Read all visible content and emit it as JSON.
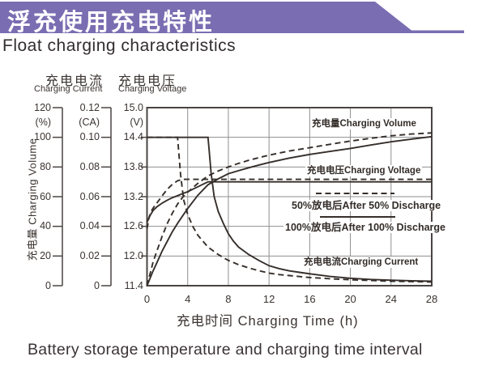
{
  "banner": {
    "title_zh": "浮充使用充电特性"
  },
  "subtitle": "Float charging characteristics",
  "caption": "Battery storage temperature and charging time interval",
  "colors": {
    "banner_purple": "#7a6db1",
    "curve": "#352e2a",
    "grid": "#8f8f8f",
    "border": "#4a4442",
    "text": "#3a3330"
  },
  "axes": {
    "current_header_zh": "充电电流",
    "current_header_en": "Charging Current",
    "voltage_header_zh": "充电电压",
    "voltage_header_en": "Charging Voltage",
    "volume_axis_label": "充电量 Charging Volume",
    "volume_unit": "(%)",
    "current_unit": "(CA)",
    "voltage_unit": "(V)",
    "volume_ticks": [
      "120",
      "100",
      "80",
      "60",
      "40",
      "20",
      "0"
    ],
    "current_ticks": [
      "0.12",
      "0.10",
      "0.08",
      "0.06",
      "0.04",
      "0.02",
      "0"
    ],
    "voltage_ticks": [
      "15.0",
      "14.4",
      "13.8",
      "13.2",
      "12.6",
      "12.0",
      "11.4"
    ],
    "x_ticks": [
      "0",
      "4",
      "8",
      "12",
      "16",
      "20",
      "24",
      "28"
    ],
    "x_title": "充电时间 Charging Time (h)"
  },
  "plot_labels": {
    "volume": "充电量Charging Volume",
    "voltage": "充电电压Charging Voltage",
    "current": "充电电流Charging Current",
    "legend_50": "50%放电后After 50% Discharge",
    "legend_100": "100%放电后After 100% Discharge"
  },
  "chart_data": {
    "type": "line",
    "title": "Float charging characteristics 浮充使用充电特性",
    "xlabel": "充电时间 Charging Time (h)",
    "x_range": [
      0,
      28
    ],
    "x_gridlines_every": 4,
    "grid": true,
    "axes": [
      {
        "name": "charging_volume",
        "unit": "%",
        "range": [
          0,
          120
        ],
        "ticks": [
          120,
          100,
          80,
          60,
          40,
          20,
          0
        ]
      },
      {
        "name": "charging_current",
        "unit": "CA",
        "range": [
          0,
          0.12
        ],
        "ticks": [
          0.12,
          0.1,
          0.08,
          0.06,
          0.04,
          0.02,
          0
        ]
      },
      {
        "name": "charging_voltage",
        "unit": "V",
        "range": [
          11.4,
          15.0
        ],
        "ticks": [
          15.0,
          14.4,
          13.8,
          13.2,
          12.6,
          12.0,
          11.4
        ]
      }
    ],
    "legend": [
      {
        "label": "50%放电后After 50% Discharge",
        "style": "dashed"
      },
      {
        "label": "100%放电后After 100% Discharge",
        "style": "solid"
      }
    ],
    "series": [
      {
        "name": "charging_volume_after_100pct_discharge",
        "axis": "charging_volume",
        "style": "solid",
        "points": [
          [
            0,
            0
          ],
          [
            0.3,
            5
          ],
          [
            0.6,
            10
          ],
          [
            1,
            16
          ],
          [
            1.5,
            23.5
          ],
          [
            2,
            30
          ],
          [
            2.5,
            36.5
          ],
          [
            3,
            42
          ],
          [
            3.5,
            47
          ],
          [
            4,
            52
          ],
          [
            4.5,
            56.5
          ],
          [
            5,
            61
          ],
          [
            6,
            68
          ],
          [
            7,
            72
          ],
          [
            8,
            75.5
          ],
          [
            9,
            77.5
          ],
          [
            10,
            79.5
          ],
          [
            11,
            81.3
          ],
          [
            12,
            83
          ],
          [
            14,
            86
          ],
          [
            16,
            88.5
          ],
          [
            18,
            90.5
          ],
          [
            20,
            92.5
          ],
          [
            22,
            94.8
          ],
          [
            24,
            97
          ],
          [
            26,
            98.8
          ],
          [
            28,
            100.5
          ]
        ]
      },
      {
        "name": "charging_volume_after_50pct_discharge",
        "axis": "charging_volume",
        "style": "dashed",
        "points": [
          [
            0,
            0
          ],
          [
            0.3,
            8
          ],
          [
            0.6,
            16
          ],
          [
            1,
            24
          ],
          [
            1.5,
            33.5
          ],
          [
            2,
            42
          ],
          [
            2.5,
            49
          ],
          [
            3,
            55
          ],
          [
            3.5,
            59.5
          ],
          [
            4,
            63
          ],
          [
            5,
            69
          ],
          [
            6,
            74
          ],
          [
            7,
            77.3
          ],
          [
            8,
            80
          ],
          [
            9,
            82.4
          ],
          [
            10,
            84.5
          ],
          [
            11,
            86.3
          ],
          [
            12,
            88
          ],
          [
            14,
            90.8
          ],
          [
            16,
            93
          ],
          [
            18,
            95.3
          ],
          [
            20,
            97.5
          ],
          [
            22,
            99.3
          ],
          [
            24,
            101
          ],
          [
            26,
            102.2
          ],
          [
            28,
            103
          ]
        ]
      },
      {
        "name": "charging_voltage_after_100pct_discharge",
        "axis": "charging_voltage",
        "style": "solid",
        "points": [
          [
            0,
            12.68
          ],
          [
            0.3,
            12.82
          ],
          [
            0.6,
            12.92
          ],
          [
            1,
            13.0
          ],
          [
            1.5,
            13.07
          ],
          [
            2,
            13.13
          ],
          [
            2.5,
            13.18
          ],
          [
            3,
            13.22
          ],
          [
            3.5,
            13.26
          ],
          [
            4,
            13.3
          ],
          [
            4.5,
            13.35
          ],
          [
            5,
            13.4
          ],
          [
            5.5,
            13.45
          ],
          [
            6,
            13.5
          ],
          [
            28,
            13.5
          ]
        ]
      },
      {
        "name": "charging_voltage_after_50pct_discharge",
        "axis": "charging_voltage",
        "style": "dashed",
        "points": [
          [
            0,
            12.55
          ],
          [
            0.2,
            12.78
          ],
          [
            0.4,
            12.9
          ],
          [
            0.7,
            13.0
          ],
          [
            1,
            13.08
          ],
          [
            1.5,
            13.22
          ],
          [
            2,
            13.35
          ],
          [
            2.5,
            13.45
          ],
          [
            3,
            13.52
          ],
          [
            3.5,
            13.55
          ],
          [
            28,
            13.55
          ]
        ]
      },
      {
        "name": "charging_current_after_100pct_discharge",
        "axis": "charging_current",
        "style": "solid",
        "points": [
          [
            0,
            0.1
          ],
          [
            6,
            0.1
          ],
          [
            6.1,
            0.092
          ],
          [
            6.3,
            0.076
          ],
          [
            6.6,
            0.06
          ],
          [
            7,
            0.05
          ],
          [
            7.5,
            0.042
          ],
          [
            8,
            0.035
          ],
          [
            8.5,
            0.03
          ],
          [
            9,
            0.026
          ],
          [
            9.5,
            0.0235
          ],
          [
            10,
            0.021
          ],
          [
            11,
            0.017
          ],
          [
            12,
            0.0135
          ],
          [
            13,
            0.0115
          ],
          [
            14,
            0.01
          ],
          [
            15,
            0.009
          ],
          [
            16,
            0.008
          ],
          [
            18,
            0.0062
          ],
          [
            20,
            0.005
          ],
          [
            22,
            0.0042
          ],
          [
            24,
            0.0037
          ],
          [
            26,
            0.0033
          ],
          [
            28,
            0.003
          ]
        ]
      },
      {
        "name": "charging_current_after_50pct_discharge",
        "axis": "charging_current",
        "style": "dashed",
        "points": [
          [
            0,
            0.1
          ],
          [
            3,
            0.1
          ],
          [
            3.1,
            0.092
          ],
          [
            3.3,
            0.075
          ],
          [
            3.6,
            0.058
          ],
          [
            4,
            0.048
          ],
          [
            4.5,
            0.04
          ],
          [
            5,
            0.034
          ],
          [
            5.5,
            0.03
          ],
          [
            6,
            0.026
          ],
          [
            6.5,
            0.0235
          ],
          [
            7,
            0.021
          ],
          [
            8,
            0.017
          ],
          [
            9,
            0.0142
          ],
          [
            10,
            0.012
          ],
          [
            11,
            0.0101
          ],
          [
            12,
            0.0085
          ],
          [
            13,
            0.0075
          ],
          [
            14,
            0.0068
          ],
          [
            16,
            0.0055
          ],
          [
            18,
            0.0047
          ],
          [
            20,
            0.004
          ],
          [
            24,
            0.003
          ],
          [
            28,
            0.0025
          ]
        ]
      }
    ]
  }
}
